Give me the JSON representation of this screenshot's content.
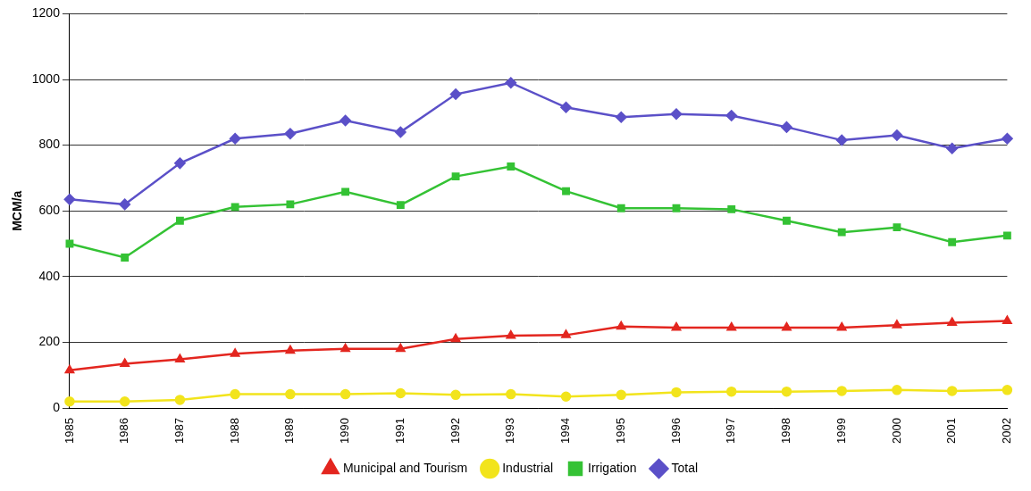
{
  "chart_data": {
    "type": "line",
    "y_label": "MCM/a",
    "categories": [
      "1985",
      "1986",
      "1987",
      "1988",
      "1989",
      "1990",
      "1991",
      "1992",
      "1993",
      "1994",
      "1995",
      "1996",
      "1997",
      "1998",
      "1999",
      "2000",
      "2001",
      "2002"
    ],
    "series": [
      {
        "name": "Municipal and Tourism",
        "color": "#e3261f",
        "marker": "triangle",
        "values": [
          115,
          135,
          148,
          165,
          175,
          180,
          180,
          210,
          220,
          222,
          248,
          245,
          245,
          245,
          245,
          252,
          260,
          265
        ]
      },
      {
        "name": "Industrial",
        "color": "#f2e41c",
        "marker": "circle",
        "values": [
          20,
          20,
          25,
          42,
          42,
          42,
          45,
          40,
          42,
          35,
          40,
          48,
          50,
          50,
          52,
          55,
          52,
          55
        ]
      },
      {
        "name": "Irrigation",
        "color": "#34c234",
        "marker": "square",
        "values": [
          500,
          458,
          570,
          612,
          620,
          658,
          618,
          705,
          735,
          660,
          608,
          608,
          605,
          570,
          535,
          550,
          505,
          525
        ]
      },
      {
        "name": "Total",
        "color": "#5b50c8",
        "marker": "diamond",
        "values": [
          635,
          620,
          745,
          820,
          835,
          875,
          840,
          955,
          990,
          915,
          885,
          895,
          890,
          855,
          815,
          830,
          790,
          820
        ]
      }
    ],
    "ylim": [
      0,
      1200
    ],
    "yticks": [
      0,
      200,
      400,
      600,
      800,
      1000,
      1200
    ],
    "grid": true,
    "legend": "bottom"
  }
}
